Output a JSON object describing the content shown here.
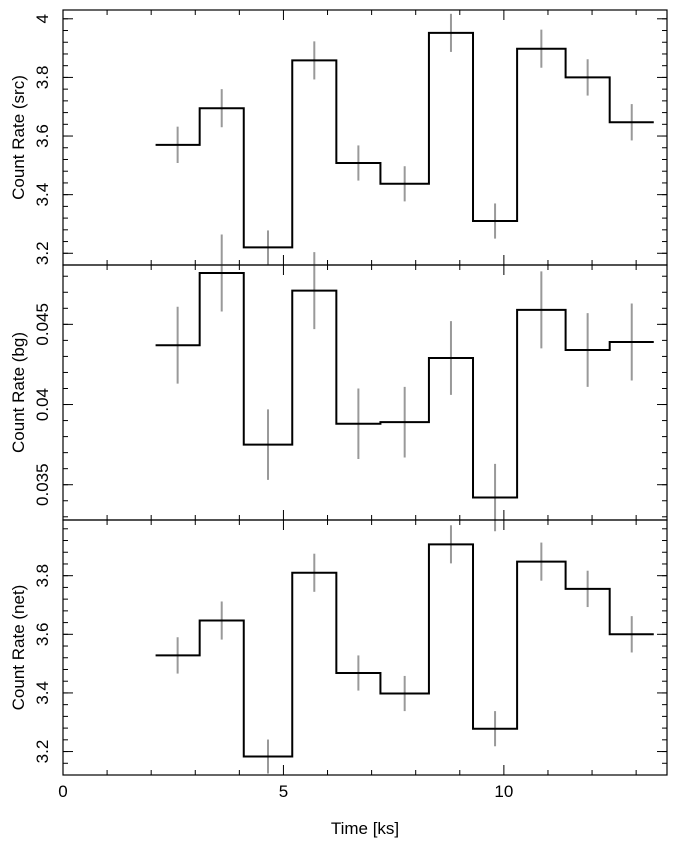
{
  "chart_data": [
    {
      "type": "line",
      "panel": "top",
      "ylabel": "Count Rate (src)",
      "xlim": [
        0,
        13.7
      ],
      "ylim": [
        3.16,
        4.03
      ],
      "yticks": [
        3.2,
        3.4,
        3.6,
        3.8,
        4
      ],
      "ytick_labels": [
        "3.2",
        "3.4",
        "3.6",
        "3.8",
        "4"
      ],
      "bins": [
        {
          "x0": 2.1,
          "x1": 3.1,
          "x": 2.6,
          "y": 3.57,
          "err": 0.062
        },
        {
          "x0": 3.1,
          "x1": 4.1,
          "x": 3.6,
          "y": 3.695,
          "err": 0.065
        },
        {
          "x0": 4.1,
          "x1": 5.2,
          "x": 4.65,
          "y": 3.22,
          "err": 0.058
        },
        {
          "x0": 5.2,
          "x1": 6.2,
          "x": 5.7,
          "y": 3.858,
          "err": 0.065
        },
        {
          "x0": 6.2,
          "x1": 7.2,
          "x": 6.7,
          "y": 3.508,
          "err": 0.06
        },
        {
          "x0": 7.2,
          "x1": 8.3,
          "x": 7.75,
          "y": 3.437,
          "err": 0.06
        },
        {
          "x0": 8.3,
          "x1": 9.3,
          "x": 8.8,
          "y": 3.952,
          "err": 0.065
        },
        {
          "x0": 9.3,
          "x1": 10.3,
          "x": 9.8,
          "y": 3.31,
          "err": 0.06
        },
        {
          "x0": 10.3,
          "x1": 11.4,
          "x": 10.85,
          "y": 3.898,
          "err": 0.065
        },
        {
          "x0": 11.4,
          "x1": 12.4,
          "x": 11.9,
          "y": 3.8,
          "err": 0.062
        },
        {
          "x0": 12.4,
          "x1": 13.4,
          "x": 12.9,
          "y": 3.647,
          "err": 0.062
        }
      ]
    },
    {
      "type": "line",
      "panel": "middle",
      "ylabel": "Count Rate (bg)",
      "xlim": [
        0,
        13.7
      ],
      "ylim": [
        0.0328,
        0.0487
      ],
      "yticks": [
        0.035,
        0.04,
        0.045
      ],
      "ytick_labels": [
        "0.035",
        "0.04",
        "0.045"
      ],
      "bins": [
        {
          "x0": 2.1,
          "x1": 3.1,
          "x": 2.6,
          "y": 0.0437,
          "err": 0.0024
        },
        {
          "x0": 3.1,
          "x1": 4.1,
          "x": 3.6,
          "y": 0.0482,
          "err": 0.0024
        },
        {
          "x0": 4.1,
          "x1": 5.2,
          "x": 4.65,
          "y": 0.0375,
          "err": 0.0022
        },
        {
          "x0": 5.2,
          "x1": 6.2,
          "x": 5.7,
          "y": 0.0471,
          "err": 0.0024
        },
        {
          "x0": 6.2,
          "x1": 7.2,
          "x": 6.7,
          "y": 0.0388,
          "err": 0.0022
        },
        {
          "x0": 7.2,
          "x1": 8.3,
          "x": 7.75,
          "y": 0.0389,
          "err": 0.0022
        },
        {
          "x0": 8.3,
          "x1": 9.3,
          "x": 8.8,
          "y": 0.0429,
          "err": 0.0023
        },
        {
          "x0": 9.3,
          "x1": 10.3,
          "x": 9.8,
          "y": 0.0342,
          "err": 0.0021
        },
        {
          "x0": 10.3,
          "x1": 11.4,
          "x": 10.85,
          "y": 0.0459,
          "err": 0.0024
        },
        {
          "x0": 11.4,
          "x1": 12.4,
          "x": 11.9,
          "y": 0.0434,
          "err": 0.0023
        },
        {
          "x0": 12.4,
          "x1": 13.4,
          "x": 12.9,
          "y": 0.0439,
          "err": 0.0024
        }
      ]
    },
    {
      "type": "line",
      "panel": "bottom",
      "ylabel": "Count Rate (net)",
      "xlabel": "Time [ks]",
      "xlim": [
        0,
        13.7
      ],
      "xticks": [
        0,
        5,
        10
      ],
      "xtick_labels": [
        "0",
        "5",
        "10"
      ],
      "ylim": [
        3.12,
        3.99
      ],
      "yticks": [
        3.2,
        3.4,
        3.6,
        3.8
      ],
      "ytick_labels": [
        "3.2",
        "3.4",
        "3.6",
        "3.8"
      ],
      "bins": [
        {
          "x0": 2.1,
          "x1": 3.1,
          "x": 2.6,
          "y": 3.528,
          "err": 0.062
        },
        {
          "x0": 3.1,
          "x1": 4.1,
          "x": 3.6,
          "y": 3.647,
          "err": 0.065
        },
        {
          "x0": 4.1,
          "x1": 5.2,
          "x": 4.65,
          "y": 3.183,
          "err": 0.058
        },
        {
          "x0": 5.2,
          "x1": 6.2,
          "x": 5.7,
          "y": 3.81,
          "err": 0.065
        },
        {
          "x0": 6.2,
          "x1": 7.2,
          "x": 6.7,
          "y": 3.468,
          "err": 0.06
        },
        {
          "x0": 7.2,
          "x1": 8.3,
          "x": 7.75,
          "y": 3.398,
          "err": 0.06
        },
        {
          "x0": 8.3,
          "x1": 9.3,
          "x": 8.8,
          "y": 3.907,
          "err": 0.065
        },
        {
          "x0": 9.3,
          "x1": 10.3,
          "x": 9.8,
          "y": 3.278,
          "err": 0.06
        },
        {
          "x0": 10.3,
          "x1": 11.4,
          "x": 10.85,
          "y": 3.848,
          "err": 0.065
        },
        {
          "x0": 11.4,
          "x1": 12.4,
          "x": 11.9,
          "y": 3.755,
          "err": 0.062
        },
        {
          "x0": 12.4,
          "x1": 13.4,
          "x": 12.9,
          "y": 3.6,
          "err": 0.062
        }
      ]
    }
  ],
  "colors": {
    "step_line": "#000000",
    "error_bar": "#999999",
    "frame": "#000000"
  }
}
